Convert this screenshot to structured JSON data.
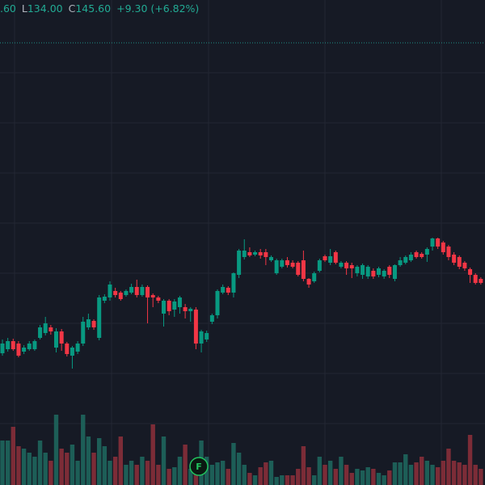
{
  "header": {
    "items": [
      {
        "value": ".60"
      },
      {
        "label": "L",
        "value": "134.00"
      },
      {
        "label": "C",
        "value": "145.60"
      },
      {
        "value": "+9.30 (+6.82%)"
      }
    ]
  },
  "chart_data": {
    "type": "candlestick",
    "up_color": "#089981",
    "down_color": "#f23645",
    "volume_up_color": "#1d5e57",
    "volume_down_color": "#7c2c37",
    "ylim": [
      0,
      300
    ],
    "y2lim": [
      0,
      600
    ],
    "annotation": "F",
    "open": [
      81.5,
      84,
      89,
      87.5,
      82.5,
      84,
      84,
      91,
      94,
      97.5,
      85,
      95,
      87.5,
      80,
      82.5,
      87.5,
      97.5,
      101.5,
      91,
      114,
      116,
      120,
      119,
      117.5,
      119,
      122.5,
      117.5,
      122.5,
      117.5,
      116,
      106,
      114,
      108.5,
      110,
      110,
      107.5,
      108.5,
      87.5,
      90,
      101,
      105,
      119,
      122,
      119,
      130,
      141,
      144,
      142.5,
      144,
      144,
      139,
      131,
      135,
      139,
      137.5,
      137.5,
      139,
      127.5,
      126,
      132.5,
      141.5,
      137.5,
      144,
      135,
      137.5,
      136,
      131,
      130,
      129,
      132.5,
      130,
      129,
      135,
      127.5,
      136,
      137.5,
      139,
      144,
      143,
      142.5,
      147.5,
      152.5,
      150,
      147.5,
      142.5,
      141,
      137.5,
      133.5,
      130,
      127.5
    ],
    "high": [
      90,
      91,
      90.5,
      89,
      86.5,
      89,
      90,
      99,
      104,
      99,
      97,
      96.5,
      88.5,
      86,
      89,
      104,
      106,
      102.5,
      117.5,
      118,
      126,
      122,
      120,
      121,
      124.5,
      127,
      124,
      123.5,
      118.5,
      117,
      115,
      115,
      115,
      117,
      112,
      110,
      110,
      96,
      95.5,
      106,
      121,
      124,
      123,
      131.5,
      146,
      152,
      147,
      145,
      146,
      146,
      142,
      140,
      140,
      141,
      139,
      138.5,
      145,
      128,
      132,
      140,
      142.5,
      146,
      145,
      138.5,
      138.5,
      137.5,
      136,
      137,
      136,
      134,
      135,
      133.5,
      136,
      136.5,
      141,
      142,
      144,
      145,
      144,
      147,
      153,
      153,
      151,
      148.5,
      144,
      142,
      138.5,
      134.5,
      131,
      128.5
    ],
    "low": [
      80,
      82.5,
      83,
      79,
      81,
      83,
      83,
      90,
      92.5,
      93,
      82,
      83,
      79.5,
      72,
      81,
      86,
      96,
      96,
      89.5,
      112.5,
      114,
      116,
      114,
      116.5,
      118,
      116,
      116.5,
      100,
      110,
      112.5,
      98,
      105,
      104,
      106,
      103,
      101,
      84,
      82,
      88.5,
      99.5,
      103,
      118,
      117.5,
      116,
      128,
      139.5,
      141,
      141.5,
      140,
      136,
      138,
      130,
      134,
      134.5,
      134,
      129,
      126,
      122,
      125,
      131.5,
      138,
      136,
      136.5,
      134,
      130,
      128,
      129,
      127.5,
      127.5,
      127.5,
      128.5,
      127.5,
      128,
      126,
      135,
      136.5,
      138,
      140,
      140,
      138,
      145,
      146,
      142.5,
      139,
      136,
      133.5,
      132.5,
      125,
      124,
      124
    ],
    "close": [
      87.5,
      89,
      84,
      80,
      85,
      87.5,
      89,
      97.5,
      100,
      95,
      95,
      87.5,
      81,
      85,
      87.5,
      101,
      102.5,
      97.5,
      116,
      116.5,
      124,
      117.5,
      115,
      120,
      122.5,
      117.5,
      122.5,
      116,
      116,
      114,
      114,
      107.5,
      113.5,
      116,
      107.5,
      109,
      87.5,
      95,
      94,
      105,
      120,
      122.5,
      119,
      131,
      145,
      145,
      142,
      144,
      142,
      141,
      141,
      139,
      139,
      136,
      135,
      130,
      127.5,
      124,
      131,
      139,
      139,
      141.5,
      137.5,
      137.5,
      134,
      134,
      135,
      136,
      135,
      129,
      134,
      132.5,
      130,
      136,
      139,
      141,
      142.5,
      141,
      141,
      146,
      152.5,
      147.5,
      144,
      141,
      137.5,
      135,
      134,
      130,
      125,
      125
    ],
    "volume": [
      55,
      55,
      72,
      48,
      45,
      40,
      35,
      55,
      40,
      30,
      87,
      45,
      40,
      50,
      30,
      87,
      60,
      40,
      58,
      48,
      30,
      35,
      60,
      25,
      30,
      25,
      35,
      30,
      75,
      25,
      60,
      20,
      22,
      35,
      50,
      20,
      25,
      55,
      35,
      25,
      28,
      30,
      20,
      52,
      40,
      25,
      15,
      12,
      22,
      28,
      30,
      10,
      12,
      12,
      12,
      20,
      48,
      22,
      12,
      35,
      25,
      30,
      20,
      35,
      25,
      15,
      20,
      18,
      22,
      20,
      15,
      12,
      18,
      28,
      28,
      38,
      25,
      28,
      35,
      30,
      25,
      22,
      30,
      45,
      30,
      28,
      25,
      62,
      25,
      20
    ]
  }
}
